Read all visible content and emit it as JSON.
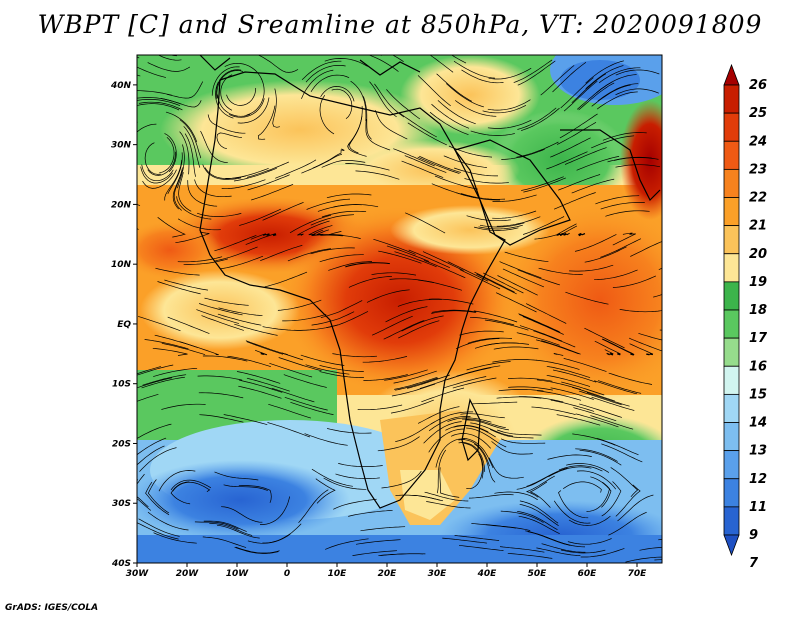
{
  "title": "WBPT [C] and Sreamline at 850hPa, VT: 2020091809",
  "credit": "GrADS: IGES/COLA",
  "map": {
    "projection": "lat-lon",
    "lon_range": [
      -30,
      75
    ],
    "lat_range": [
      -40,
      45
    ],
    "x_ticks": [
      {
        "label": "30W",
        "lon": -30
      },
      {
        "label": "20W",
        "lon": -20
      },
      {
        "label": "10W",
        "lon": -10
      },
      {
        "label": "0",
        "lon": 0
      },
      {
        "label": "10E",
        "lon": 10
      },
      {
        "label": "20E",
        "lon": 20
      },
      {
        "label": "30E",
        "lon": 30
      },
      {
        "label": "40E",
        "lon": 40
      },
      {
        "label": "50E",
        "lon": 50
      },
      {
        "label": "60E",
        "lon": 60
      },
      {
        "label": "70E",
        "lon": 70
      }
    ],
    "y_ticks": [
      {
        "label": "40N",
        "lat": 40
      },
      {
        "label": "30N",
        "lat": 30
      },
      {
        "label": "20N",
        "lat": 20
      },
      {
        "label": "10N",
        "lat": 10
      },
      {
        "label": "EQ",
        "lat": 0
      },
      {
        "label": "10S",
        "lat": -10
      },
      {
        "label": "20S",
        "lat": -20
      },
      {
        "label": "30S",
        "lat": -30
      },
      {
        "label": "40S",
        "lat": -40
      }
    ]
  },
  "colorbar": {
    "levels": [
      {
        "label": "26",
        "color": "#a50000"
      },
      {
        "label": "25",
        "color": "#c81e00"
      },
      {
        "label": "24",
        "color": "#e13c0a"
      },
      {
        "label": "23",
        "color": "#ef5a14"
      },
      {
        "label": "22",
        "color": "#f7821e"
      },
      {
        "label": "21",
        "color": "#fba028"
      },
      {
        "label": "20",
        "color": "#fbc35a"
      },
      {
        "label": "19",
        "color": "#fde696"
      },
      {
        "label": "18",
        "color": "#3cb44b"
      },
      {
        "label": "17",
        "color": "#5ac85f"
      },
      {
        "label": "16",
        "color": "#96dc8c"
      },
      {
        "label": "15",
        "color": "#d2f5f0"
      },
      {
        "label": "14",
        "color": "#a0d7f5"
      },
      {
        "label": "13",
        "color": "#7dbef0"
      },
      {
        "label": "12",
        "color": "#5aa0eb"
      },
      {
        "label": "11",
        "color": "#3c82e1"
      },
      {
        "label": "9",
        "color": "#2864d2"
      },
      {
        "label": "7",
        "color": "#1e50c3"
      }
    ]
  }
}
